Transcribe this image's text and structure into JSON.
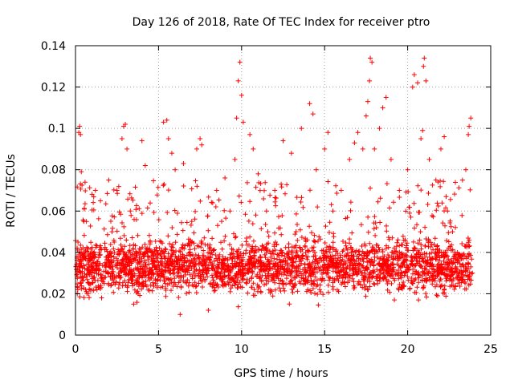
{
  "chart_data": {
    "type": "scatter",
    "title": "Day 126 of 2018, Rate Of TEC Index for receiver ptro",
    "xlabel": "GPS time / hours",
    "ylabel": "ROTI / TECUs",
    "xlim": [
      0,
      25
    ],
    "ylim": [
      0,
      0.14
    ],
    "x_ticks": [
      0,
      5,
      10,
      15,
      20,
      25
    ],
    "x_tick_labels": [
      "0",
      "5",
      "10",
      "15",
      "20",
      "25"
    ],
    "y_ticks": [
      0,
      0.02,
      0.04,
      0.06,
      0.08,
      0.1,
      0.12,
      0.14
    ],
    "y_tick_labels": [
      "0",
      "0.02",
      "0.04",
      "0.06",
      "0.08",
      "0.1",
      "0.12",
      "0.14"
    ],
    "grid": true,
    "marker": "+",
    "color": "#ff0000",
    "series": [
      {
        "name": "ROTI",
        "note": "dense band of thousands of samples mostly between 0.015 and 0.06 TECU/min across 0-24 h; listed points are representative samples including the visible outliers",
        "points": [
          [
            0.1,
            0.03
          ],
          [
            0.15,
            0.045
          ],
          [
            0.2,
            0.098
          ],
          [
            0.25,
            0.101
          ],
          [
            0.3,
            0.097
          ],
          [
            0.35,
            0.079
          ],
          [
            0.5,
            0.055
          ],
          [
            0.6,
            0.022
          ],
          [
            0.8,
            0.033
          ],
          [
            1.0,
            0.04
          ],
          [
            1.2,
            0.07
          ],
          [
            1.5,
            0.065
          ],
          [
            1.8,
            0.028
          ],
          [
            2.0,
            0.075
          ],
          [
            2.2,
            0.05
          ],
          [
            2.5,
            0.07
          ],
          [
            2.8,
            0.095
          ],
          [
            2.9,
            0.101
          ],
          [
            3.0,
            0.102
          ],
          [
            3.1,
            0.09
          ],
          [
            3.3,
            0.06
          ],
          [
            3.5,
            0.015
          ],
          [
            4.0,
            0.094
          ],
          [
            4.2,
            0.082
          ],
          [
            4.5,
            0.045
          ],
          [
            5.0,
            0.035
          ],
          [
            5.3,
            0.103
          ],
          [
            5.5,
            0.104
          ],
          [
            5.6,
            0.095
          ],
          [
            5.8,
            0.088
          ],
          [
            6.0,
            0.08
          ],
          [
            6.3,
            0.01
          ],
          [
            6.5,
            0.083
          ],
          [
            7.0,
            0.055
          ],
          [
            7.3,
            0.09
          ],
          [
            7.5,
            0.095
          ],
          [
            7.6,
            0.092
          ],
          [
            8.0,
            0.012
          ],
          [
            8.5,
            0.07
          ],
          [
            9.0,
            0.076
          ],
          [
            9.3,
            0.06
          ],
          [
            9.6,
            0.085
          ],
          [
            9.7,
            0.105
          ],
          [
            9.8,
            0.123
          ],
          [
            9.9,
            0.132
          ],
          [
            10.0,
            0.116
          ],
          [
            10.1,
            0.103
          ],
          [
            10.5,
            0.097
          ],
          [
            10.7,
            0.09
          ],
          [
            11.0,
            0.078
          ],
          [
            11.5,
            0.06
          ],
          [
            12.0,
            0.07
          ],
          [
            12.5,
            0.094
          ],
          [
            13.0,
            0.088
          ],
          [
            13.3,
            0.03
          ],
          [
            13.6,
            0.1
          ],
          [
            14.1,
            0.112
          ],
          [
            14.3,
            0.107
          ],
          [
            14.5,
            0.08
          ],
          [
            14.7,
            0.022
          ],
          [
            15.0,
            0.09
          ],
          [
            15.2,
            0.098
          ],
          [
            15.5,
            0.06
          ],
          [
            16.0,
            0.07
          ],
          [
            16.5,
            0.085
          ],
          [
            16.8,
            0.093
          ],
          [
            17.0,
            0.098
          ],
          [
            17.3,
            0.09
          ],
          [
            17.5,
            0.106
          ],
          [
            17.6,
            0.113
          ],
          [
            17.7,
            0.123
          ],
          [
            17.75,
            0.134
          ],
          [
            17.85,
            0.132
          ],
          [
            18.0,
            0.09
          ],
          [
            18.3,
            0.1
          ],
          [
            18.5,
            0.11
          ],
          [
            18.7,
            0.115
          ],
          [
            19.0,
            0.085
          ],
          [
            19.2,
            0.017
          ],
          [
            19.5,
            0.07
          ],
          [
            20.0,
            0.08
          ],
          [
            20.3,
            0.12
          ],
          [
            20.4,
            0.126
          ],
          [
            20.6,
            0.122
          ],
          [
            20.8,
            0.095
          ],
          [
            20.9,
            0.099
          ],
          [
            20.95,
            0.13
          ],
          [
            21.0,
            0.134
          ],
          [
            21.1,
            0.123
          ],
          [
            21.3,
            0.085
          ],
          [
            21.7,
            0.075
          ],
          [
            22.0,
            0.09
          ],
          [
            22.2,
            0.096
          ],
          [
            22.4,
            0.06
          ],
          [
            22.7,
            0.05
          ],
          [
            23.0,
            0.04
          ],
          [
            23.3,
            0.075
          ],
          [
            23.5,
            0.08
          ],
          [
            23.65,
            0.097
          ],
          [
            23.7,
            0.101
          ],
          [
            23.8,
            0.105
          ],
          [
            23.9,
            0.03
          ]
        ]
      }
    ]
  }
}
